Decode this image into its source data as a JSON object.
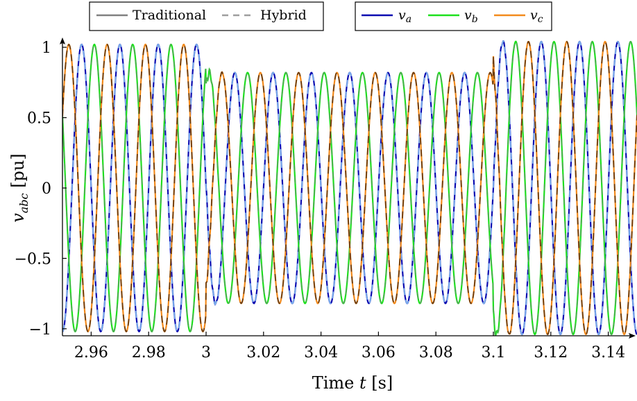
{
  "chart_data": {
    "type": "line",
    "xlabel": "Time t [s]",
    "ylabel": "v_abc [pu]",
    "xlim": [
      2.95,
      3.15
    ],
    "ylim": [
      -1.05,
      1.05
    ],
    "x_ticks": [
      2.96,
      2.98,
      3.0,
      3.02,
      3.04,
      3.06,
      3.08,
      3.1,
      3.12,
      3.14
    ],
    "x_tick_labels": [
      "2.96",
      "2.98",
      "3",
      "3.02",
      "3.04",
      "3.06",
      "3.08",
      "3.1",
      "3.12",
      "3.14"
    ],
    "y_ticks": [
      -1,
      -0.5,
      0,
      0.5,
      1
    ],
    "y_tick_labels": [
      "−1",
      "−0.5",
      "0",
      "0.5",
      "1"
    ],
    "grid": false,
    "frequency_hz": 75,
    "voltage_segments": [
      {
        "t_start": 2.95,
        "t_end": 3.0,
        "amplitude_pu": 1.02
      },
      {
        "t_start": 3.0,
        "t_end": 3.1,
        "amplitude_pu": 0.82
      },
      {
        "t_start": 3.1,
        "t_end": 3.15,
        "amplitude_pu": 1.04
      }
    ],
    "legend_methods": [
      {
        "label": "Traditional",
        "style": "solid",
        "color": "#808080"
      },
      {
        "label": "Hybrid",
        "style": "dashed",
        "color": "#9e9e9e"
      }
    ],
    "legend_phases": [
      {
        "label": "v",
        "sub": "a",
        "color": "#0b0bb0",
        "hybrid_color": "#7cb3ef"
      },
      {
        "label": "v",
        "sub": "b",
        "color": "#1ce01c",
        "hybrid_color": "#4caf50"
      },
      {
        "label": "v",
        "sub": "c",
        "color": "#f28a1c",
        "hybrid_color": "#6b3d12"
      }
    ],
    "legend_placement": "top"
  }
}
